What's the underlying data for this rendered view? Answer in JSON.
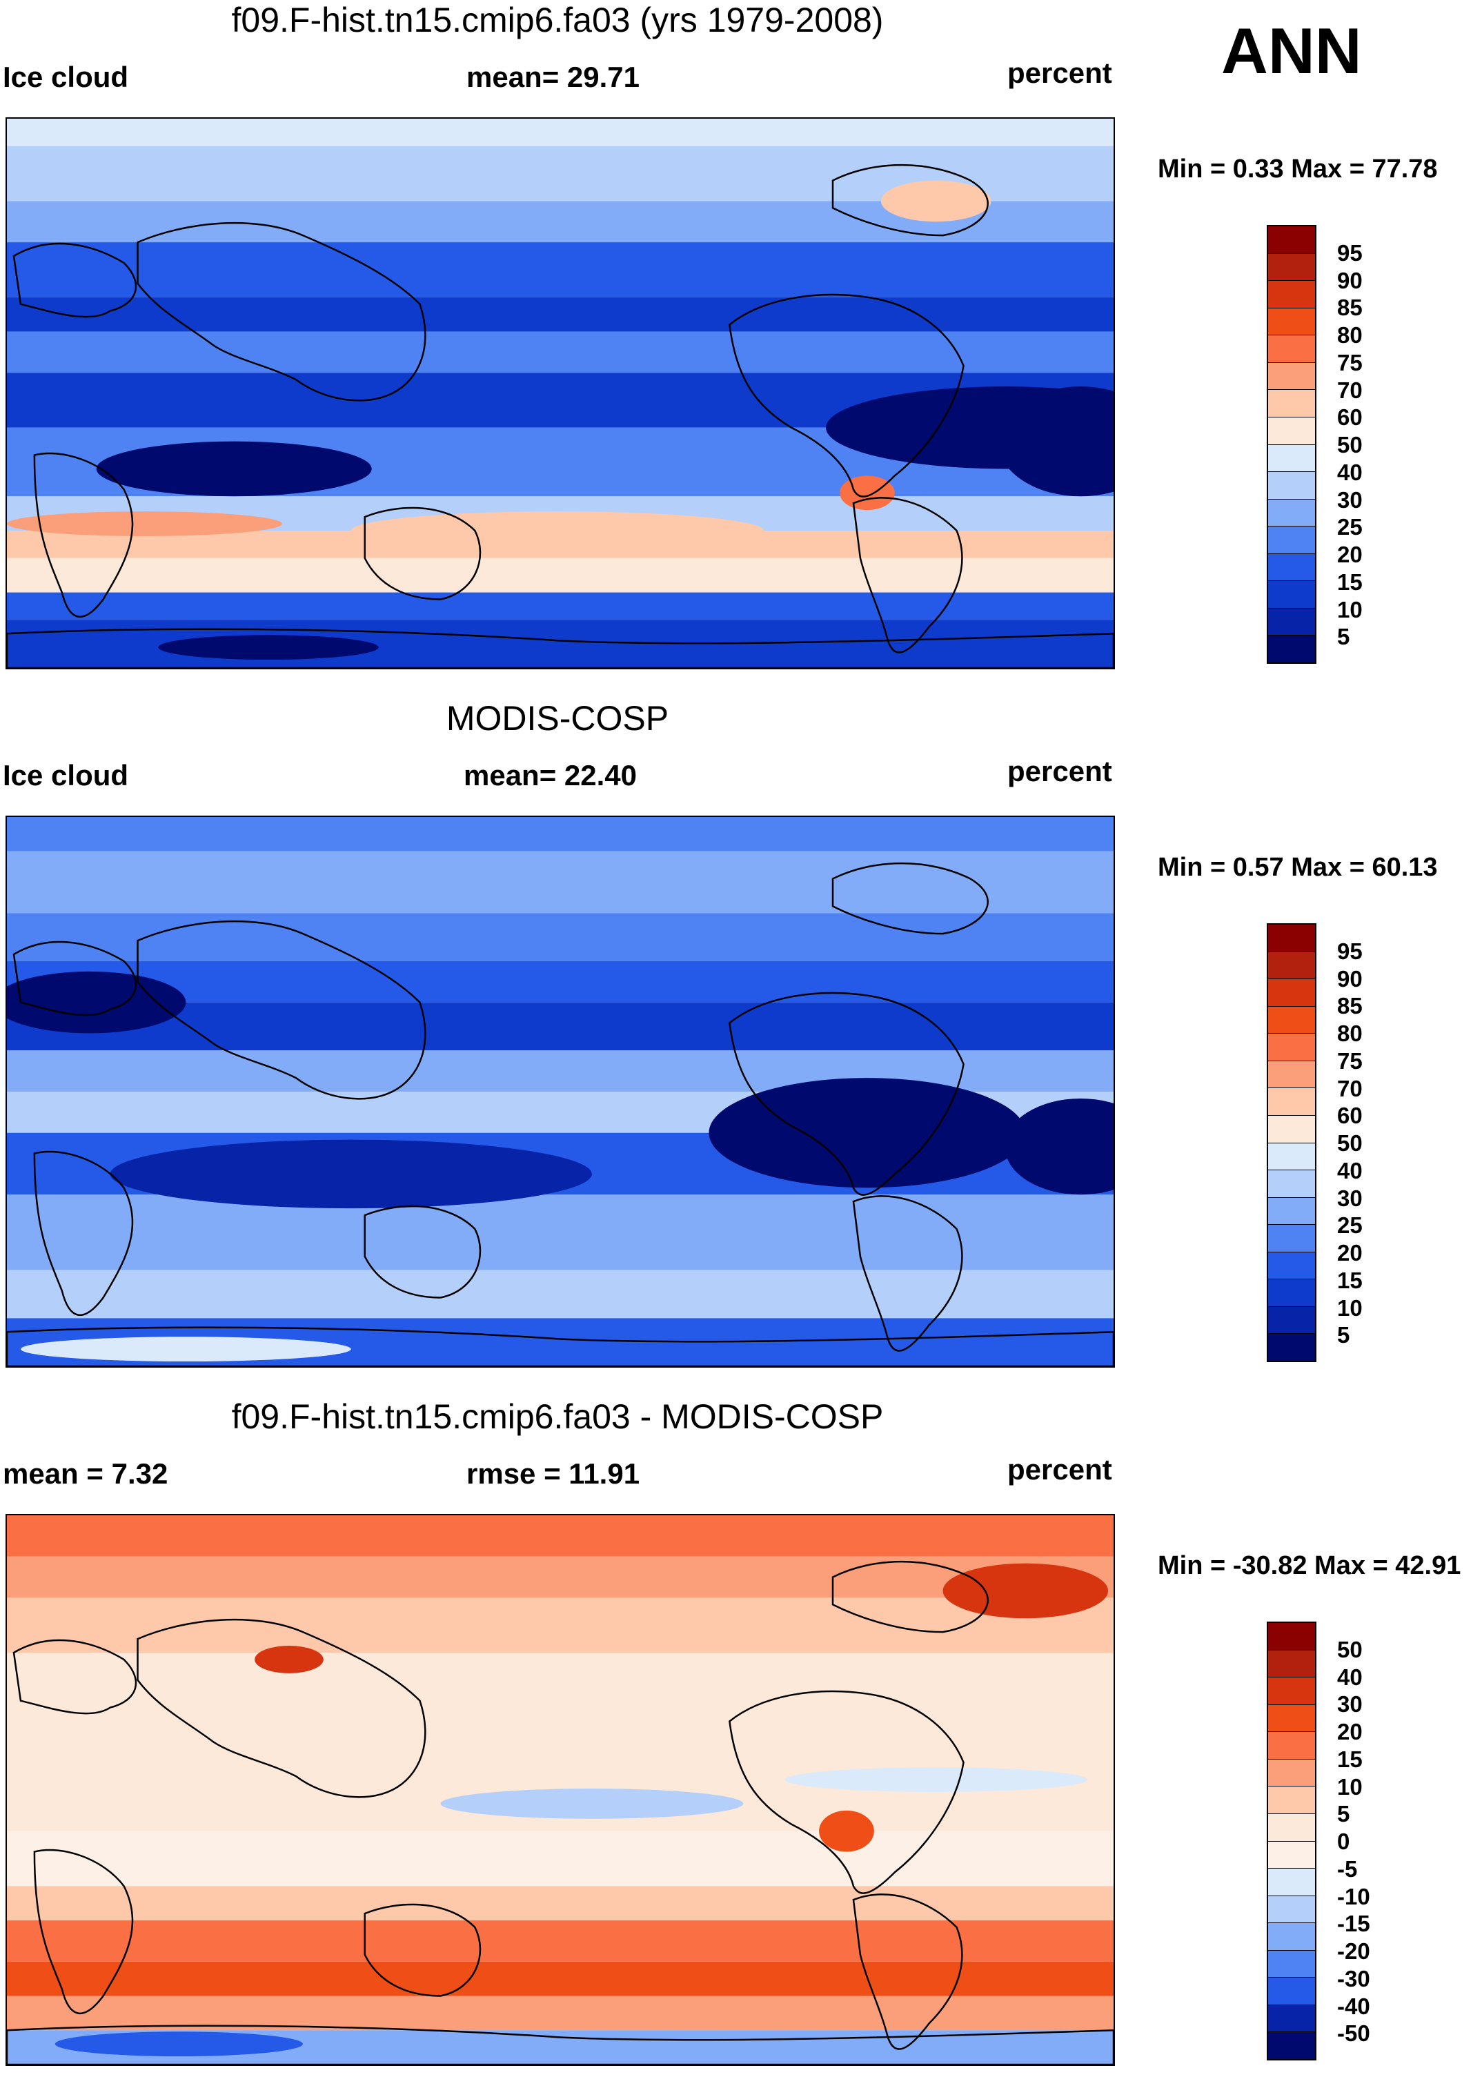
{
  "season": "ANN",
  "panels": [
    {
      "title": "f09.F-hist.tn15.cmip6.fa03 (yrs 1979-2008)",
      "left_label": "Ice cloud",
      "center_label": "mean=  29.71",
      "right_label": "percent",
      "minmax": "Min =   0.33 Max =  77.78",
      "colorbar": {
        "labels": [
          "95",
          "90",
          "85",
          "80",
          "75",
          "70",
          "60",
          "50",
          "40",
          "30",
          "25",
          "20",
          "15",
          "10",
          "5"
        ],
        "colors": [
          "#8b0000",
          "#b2200e",
          "#d73510",
          "#f04e17",
          "#fa7044",
          "#fb9e7a",
          "#fdc9aa",
          "#fde9d9",
          "#dbeafa",
          "#b4d0fa",
          "#82acf7",
          "#4f82f2",
          "#2559e8",
          "#0f3bcc",
          "#0723a8",
          "#000a6e"
        ]
      },
      "style": "model"
    },
    {
      "title": "MODIS-COSP",
      "left_label": "Ice cloud",
      "center_label": "mean=  22.40",
      "right_label": "percent",
      "minmax": "Min =   0.57 Max =  60.13",
      "colorbar": {
        "labels": [
          "95",
          "90",
          "85",
          "80",
          "75",
          "70",
          "60",
          "50",
          "40",
          "30",
          "25",
          "20",
          "15",
          "10",
          "5"
        ],
        "colors": [
          "#8b0000",
          "#b2200e",
          "#d73510",
          "#f04e17",
          "#fa7044",
          "#fb9e7a",
          "#fdc9aa",
          "#fde9d9",
          "#dbeafa",
          "#b4d0fa",
          "#82acf7",
          "#4f82f2",
          "#2559e8",
          "#0f3bcc",
          "#0723a8",
          "#000a6e"
        ]
      },
      "style": "obs"
    },
    {
      "title": "f09.F-hist.tn15.cmip6.fa03 - MODIS-COSP",
      "left_label": "mean =   7.32",
      "center_label": "rmse =  11.91",
      "right_label": "percent",
      "minmax": "Min = -30.82 Max =  42.91",
      "colorbar": {
        "labels": [
          "50",
          "40",
          "30",
          "20",
          "15",
          "10",
          "5",
          "0",
          "-5",
          "-10",
          "-15",
          "-20",
          "-30",
          "-40",
          "-50"
        ],
        "colors": [
          "#8b0000",
          "#b2200e",
          "#d73510",
          "#f04e17",
          "#fa7044",
          "#fb9e7a",
          "#fdc9aa",
          "#fde9d9",
          "#fdf0e6",
          "#dbeafa",
          "#b4d0fa",
          "#82acf7",
          "#4f82f2",
          "#2559e8",
          "#0723a8",
          "#000a6e"
        ]
      },
      "style": "diff"
    }
  ]
}
